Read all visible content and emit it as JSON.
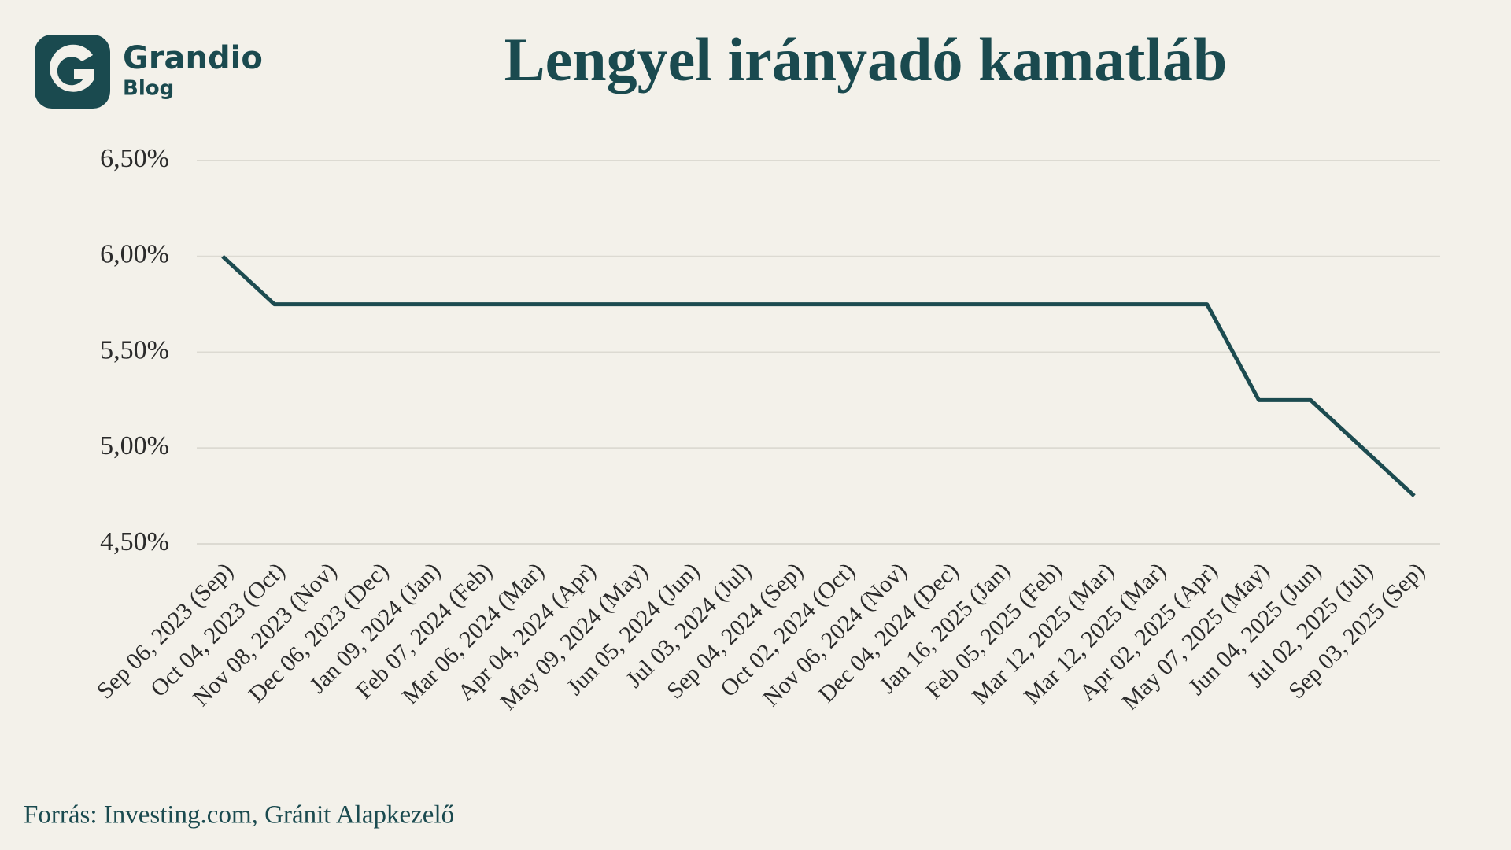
{
  "logo": {
    "name": "Grandio",
    "sub": "Blog"
  },
  "source": "Forrás: Investing.com, Gránit Alapkezelő",
  "chart_data": {
    "type": "line",
    "title": "Lengyel irányadó kamatláb",
    "categories": [
      "Sep 06, 2023 (Sep)",
      "Oct 04, 2023 (Oct)",
      "Nov 08, 2023 (Nov)",
      "Dec 06, 2023 (Dec)",
      "Jan 09, 2024 (Jan)",
      "Feb 07, 2024 (Feb)",
      "Mar 06, 2024 (Mar)",
      "Apr 04, 2024 (Apr)",
      "May 09, 2024 (May)",
      "Jun 05, 2024 (Jun)",
      "Jul 03, 2024 (Jul)",
      "Sep 04, 2024 (Sep)",
      "Oct 02, 2024 (Oct)",
      "Nov 06, 2024 (Nov)",
      "Dec 04, 2024 (Dec)",
      "Jan 16, 2025 (Jan)",
      "Feb 05, 2025 (Feb)",
      "Mar 12, 2025 (Mar)",
      "Mar 12, 2025 (Mar)",
      "Apr 02, 2025 (Apr)",
      "May 07, 2025 (May)",
      "Jun 04, 2025 (Jun)",
      "Jul 02, 2025 (Jul)",
      "Sep 03, 2025 (Sep)"
    ],
    "values": [
      6.0,
      5.75,
      5.75,
      5.75,
      5.75,
      5.75,
      5.75,
      5.75,
      5.75,
      5.75,
      5.75,
      5.75,
      5.75,
      5.75,
      5.75,
      5.75,
      5.75,
      5.75,
      5.75,
      5.75,
      5.25,
      5.25,
      5.0,
      4.75
    ],
    "color": "#1c4b50",
    "ylim": [
      4.5,
      6.5
    ],
    "yticks": [
      {
        "value": 4.5,
        "label": "4,50%"
      },
      {
        "value": 5.0,
        "label": "5,00%"
      },
      {
        "value": 5.5,
        "label": "5,50%"
      },
      {
        "value": 6.0,
        "label": "6,00%"
      },
      {
        "value": 6.5,
        "label": "6,50%"
      }
    ],
    "grid": true
  }
}
